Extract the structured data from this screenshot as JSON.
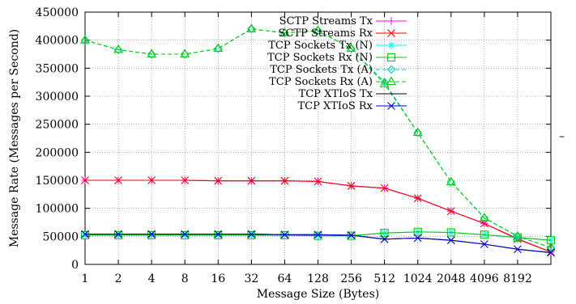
{
  "chart_data": {
    "type": "line",
    "title": "",
    "xlabel": "Message Size (Bytes)",
    "ylabel": "Message Rate (Messages per Second)",
    "x_tick_labels": [
      "1",
      "2",
      "4",
      "8",
      "16",
      "32",
      "64",
      "128",
      "256",
      "512",
      "1024",
      "2048",
      "4096",
      "8192"
    ],
    "x": [
      1,
      2,
      4,
      8,
      16,
      32,
      64,
      128,
      256,
      512,
      1024,
      2048,
      4096,
      8192,
      16384
    ],
    "x_scale": "log2",
    "xlim": [
      1,
      16384
    ],
    "ylim": [
      0,
      450000
    ],
    "y_ticks": [
      0,
      50000,
      100000,
      150000,
      200000,
      250000,
      300000,
      350000,
      400000,
      450000
    ],
    "grid": true,
    "legend_position": "top-right",
    "stray_mark": "–",
    "series": [
      {
        "name": "SCTP Streams Tx",
        "color": "#ff00ff",
        "marker": "plus",
        "dash": "solid",
        "values": [
          150000,
          150000,
          150000,
          150000,
          149000,
          149000,
          149000,
          148000,
          140000,
          136000,
          118000,
          95000,
          73000,
          46000,
          22000
        ]
      },
      {
        "name": "SCTP Streams Rx",
        "color": "#ff0000",
        "marker": "x",
        "dash": "solid",
        "values": [
          150000,
          150000,
          150000,
          150000,
          149000,
          149000,
          149000,
          148000,
          140000,
          136000,
          118000,
          95000,
          73000,
          45000,
          22000
        ]
      },
      {
        "name": "TCP Sockets Tx (N)",
        "color": "#00ffff",
        "marker": "star",
        "dash": "solid",
        "values": [
          52000,
          52000,
          52000,
          52000,
          52000,
          52000,
          52000,
          51000,
          51000,
          56000,
          58000,
          57000,
          53000,
          48000,
          43000
        ]
      },
      {
        "name": "TCP Sockets Rx (N)",
        "color": "#00cc00",
        "marker": "square",
        "dash": "solid",
        "values": [
          52000,
          52000,
          52000,
          52000,
          52000,
          52000,
          52000,
          51000,
          51000,
          56000,
          58000,
          57000,
          53000,
          48000,
          43000
        ]
      },
      {
        "name": "TCP Sockets Tx (A)",
        "color": "#00cccc",
        "marker": "diamond",
        "dash": "dashed",
        "values": [
          400000,
          383000,
          375000,
          375000,
          385000,
          420000,
          413000,
          417000,
          385000,
          325000,
          235000,
          147000,
          83000,
          50000,
          30000
        ]
      },
      {
        "name": "TCP Sockets Rx (A)",
        "color": "#00cc00",
        "marker": "triangle",
        "dash": "dashed",
        "values": [
          400000,
          383000,
          375000,
          375000,
          385000,
          420000,
          413000,
          417000,
          385000,
          322000,
          235000,
          147000,
          83000,
          50000,
          30000
        ]
      },
      {
        "name": "TCP XTIoS Tx",
        "color": "#000000",
        "marker": "none",
        "dash": "solid",
        "values": [
          54000,
          54000,
          54000,
          54000,
          54000,
          54000,
          53000,
          53000,
          52000,
          45000,
          47000,
          43000,
          36000,
          27000,
          21000
        ]
      },
      {
        "name": "TCP XTIoS Rx",
        "color": "#0000cc",
        "marker": "x",
        "dash": "solid",
        "values": [
          54000,
          54000,
          54000,
          54000,
          54000,
          54000,
          53000,
          53000,
          52000,
          45000,
          47000,
          43000,
          36000,
          27000,
          21000
        ]
      }
    ]
  }
}
